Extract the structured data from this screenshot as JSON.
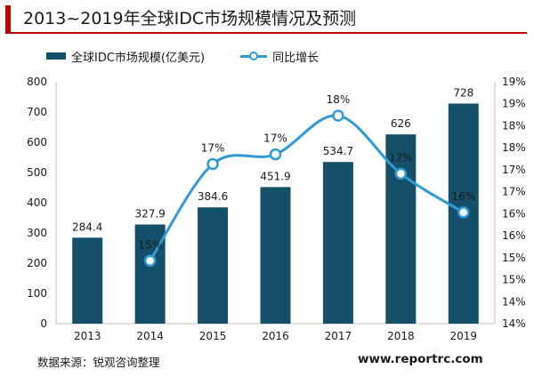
{
  "title": "2013~2019年全球IDC市场规模情况及预测",
  "legend": {
    "bar_label": "全球IDC市场规模(亿美元)",
    "line_label": "同比增长"
  },
  "source": "数据来源：锐观咨询整理",
  "website": "www.reportrc.com",
  "colors": {
    "accent": "#c00000",
    "bar": "#15506a",
    "line": "#2e9ad7"
  },
  "chart_data": {
    "type": "bar",
    "categories": [
      "2013",
      "2014",
      "2015",
      "2016",
      "2017",
      "2018",
      "2019"
    ],
    "series": [
      {
        "name": "全球IDC市场规模(亿美元)",
        "type": "bar",
        "axis": "left",
        "values": [
          284.4,
          327.9,
          384.6,
          451.9,
          534.7,
          626,
          728
        ],
        "labels": [
          "284.4",
          "327.9",
          "384.6",
          "451.9",
          "534.7",
          "626",
          "728"
        ]
      },
      {
        "name": "同比增长",
        "type": "line",
        "axis": "right",
        "values": [
          null,
          15.3,
          17.3,
          17.5,
          18.3,
          17.1,
          16.3
        ],
        "labels": [
          "",
          "15%",
          "17%",
          "17%",
          "18%",
          "17%",
          "16%"
        ]
      }
    ],
    "y_left": {
      "min": 0,
      "max": 800,
      "ticks": [
        "0",
        "100",
        "200",
        "300",
        "400",
        "500",
        "600",
        "700",
        "800"
      ]
    },
    "y_right": {
      "min": 14,
      "max": 19,
      "ticks": [
        "14%",
        "14%",
        "15%",
        "15%",
        "16%",
        "16%",
        "17%",
        "17%",
        "18%",
        "18%",
        "19%",
        "19%"
      ]
    },
    "grid": false,
    "legend_position": "top-left"
  }
}
